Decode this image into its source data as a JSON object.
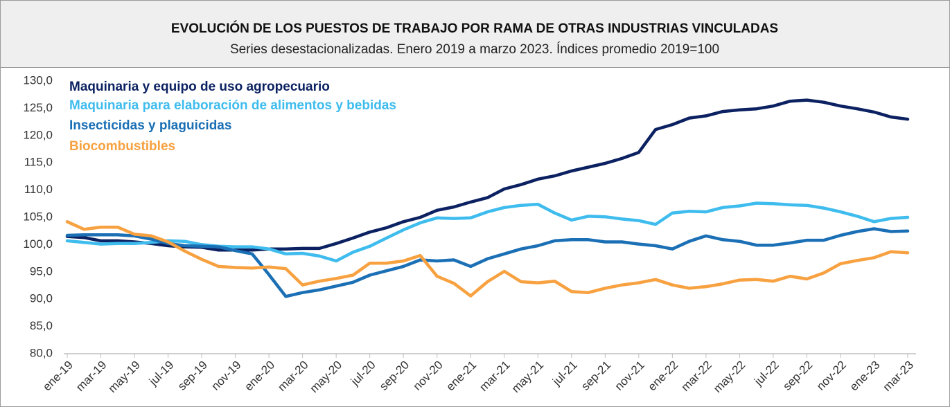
{
  "chart_data": {
    "type": "line",
    "title": "EVOLUCIÓN DE LOS PUESTOS DE TRABAJO POR RAMA DE OTRAS INDUSTRIAS VINCULADAS",
    "subtitle": "Series desestacionalizadas. Enero 2019 a marzo 2023. Índices promedio 2019=100",
    "categories": [
      "ene-19",
      null,
      "mar-19",
      null,
      "may-19",
      null,
      "jul-19",
      null,
      "sep-19",
      null,
      "nov-19",
      null,
      "ene-20",
      null,
      "mar-20",
      null,
      "may-20",
      null,
      "jul-20",
      null,
      "sep-20",
      null,
      "nov-20",
      null,
      "ene-21",
      null,
      "mar-21",
      null,
      "may-21",
      null,
      "jul-21",
      null,
      "sep-21",
      null,
      "nov-21",
      null,
      "ene-22",
      null,
      "mar-22",
      null,
      "may-22",
      null,
      "jul-22",
      null,
      "sep-22",
      null,
      "nov-22",
      null,
      "ene-23",
      null,
      "mar-23"
    ],
    "ylim": [
      80,
      130
    ],
    "yticks": [
      {
        "value": 80,
        "label": "80,0"
      },
      {
        "value": 85,
        "label": "85,0"
      },
      {
        "value": 90,
        "label": "90,0"
      },
      {
        "value": 95,
        "label": "95,0"
      },
      {
        "value": 100,
        "label": "100,0"
      },
      {
        "value": 105,
        "label": "105,0"
      },
      {
        "value": 110,
        "label": "110,0"
      },
      {
        "value": 115,
        "label": "115,0"
      },
      {
        "value": 120,
        "label": "120,0"
      },
      {
        "value": 125,
        "label": "125,0"
      },
      {
        "value": 130,
        "label": "130,0"
      }
    ],
    "grid": false,
    "legend": "top-left",
    "series": [
      {
        "name": "Maquinaria y equipo de uso agropecuario",
        "color": "#0b2161",
        "values": [
          101.5,
          101.3,
          100.7,
          100.7,
          100.5,
          100.2,
          99.8,
          99.6,
          99.5,
          99.0,
          99.0,
          99.0,
          99.2,
          99.2,
          99.3,
          99.3,
          100.2,
          101.2,
          102.3,
          103.1,
          104.2,
          105.0,
          106.3,
          106.9,
          107.8,
          108.6,
          110.2,
          111.0,
          112.0,
          112.6,
          113.5,
          114.2,
          114.9,
          115.8,
          116.9,
          121.1,
          122.0,
          123.2,
          123.6,
          124.4,
          124.7,
          124.9,
          125.4,
          126.3,
          126.5,
          126.1,
          125.4,
          124.9,
          124.3,
          123.4,
          123.0
        ]
      },
      {
        "name": "Maquinaria para elaboración de alimentos y bebidas",
        "color": "#3fbcee",
        "values": [
          100.7,
          100.4,
          100.1,
          100.2,
          100.2,
          100.4,
          100.7,
          100.6,
          100.0,
          99.7,
          99.6,
          99.6,
          99.2,
          98.3,
          98.4,
          97.9,
          97.0,
          98.6,
          99.7,
          101.2,
          102.7,
          104.0,
          104.9,
          104.8,
          104.9,
          106.0,
          106.8,
          107.2,
          107.4,
          105.8,
          104.5,
          105.2,
          105.1,
          104.7,
          104.4,
          103.7,
          105.8,
          106.1,
          106.0,
          106.8,
          107.1,
          107.6,
          107.5,
          107.3,
          107.2,
          106.7,
          106.0,
          105.2,
          104.2,
          104.8,
          105.0
        ]
      },
      {
        "name": "Insecticidas y plaguicidas",
        "color": "#1a6fb5",
        "values": [
          101.7,
          101.8,
          101.8,
          101.8,
          101.6,
          101.0,
          100.2,
          99.8,
          99.7,
          99.6,
          98.9,
          98.3,
          94.5,
          90.5,
          91.2,
          91.7,
          92.4,
          93.1,
          94.4,
          95.2,
          96.0,
          97.2,
          97.0,
          97.2,
          96.0,
          97.4,
          98.3,
          99.2,
          99.8,
          100.7,
          100.9,
          100.9,
          100.5,
          100.5,
          100.1,
          99.8,
          99.2,
          100.6,
          101.6,
          100.9,
          100.6,
          99.9,
          99.9,
          100.3,
          100.8,
          100.8,
          101.7,
          102.4,
          102.9,
          102.4,
          102.5
        ]
      },
      {
        "name": "Biocombustibles",
        "color": "#f7a140",
        "values": [
          104.2,
          102.8,
          103.2,
          103.2,
          101.9,
          101.6,
          100.5,
          98.8,
          97.3,
          96.0,
          95.8,
          95.7,
          95.9,
          95.6,
          92.6,
          93.3,
          93.8,
          94.4,
          96.6,
          96.6,
          97.0,
          98.0,
          94.2,
          92.9,
          90.6,
          93.2,
          95.1,
          93.2,
          93.0,
          93.3,
          91.4,
          91.2,
          92.0,
          92.6,
          93.0,
          93.6,
          92.6,
          92.0,
          92.3,
          92.8,
          93.5,
          93.6,
          93.3,
          94.2,
          93.7,
          94.8,
          96.5,
          97.1,
          97.6,
          98.7,
          98.5
        ]
      }
    ]
  }
}
